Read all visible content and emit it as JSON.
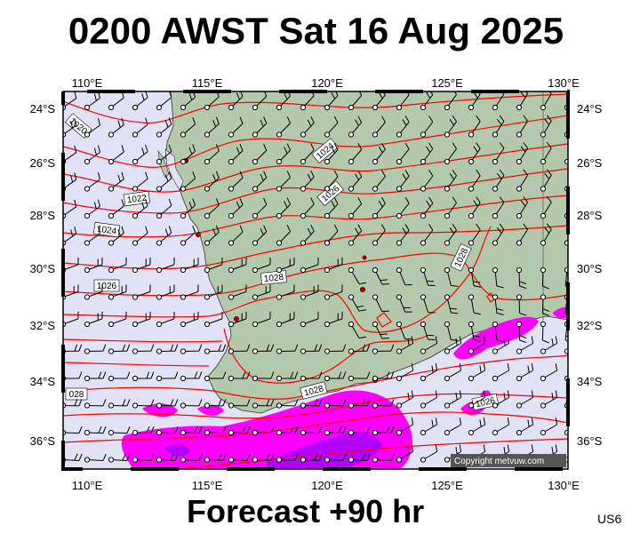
{
  "header": {
    "title": "0200 AWST Sat 16 Aug 2025"
  },
  "footer": {
    "forecast": "Forecast +90 hr",
    "code": "US6"
  },
  "map": {
    "region": "South-west Western Australia",
    "lon_range": [
      109,
      130
    ],
    "lat_range": [
      -37,
      -23.5
    ],
    "lon_ticks": [
      "110°E",
      "115°E",
      "120°E",
      "125°E",
      "130°E"
    ],
    "lat_ticks": [
      "24°S",
      "26°S",
      "28°S",
      "30°S",
      "32°S",
      "34°S",
      "36°S"
    ],
    "isobar_labels": [
      "1020",
      "1022",
      "1024",
      "1024",
      "1026",
      "1026",
      "1028",
      "1028",
      "1028",
      "1026",
      "028"
    ],
    "copyright": "Copyright metvuw.com",
    "colors": {
      "ocean": "#e2e2f7",
      "land": "#b4c9ab",
      "isobar": "#ff0000",
      "precip_light": "#ff00ff",
      "precip_heavy": "#b400ff",
      "frame": "#000000"
    },
    "legend_items": [
      "wind barbs",
      "isobars (hPa)",
      "precipitation"
    ]
  }
}
